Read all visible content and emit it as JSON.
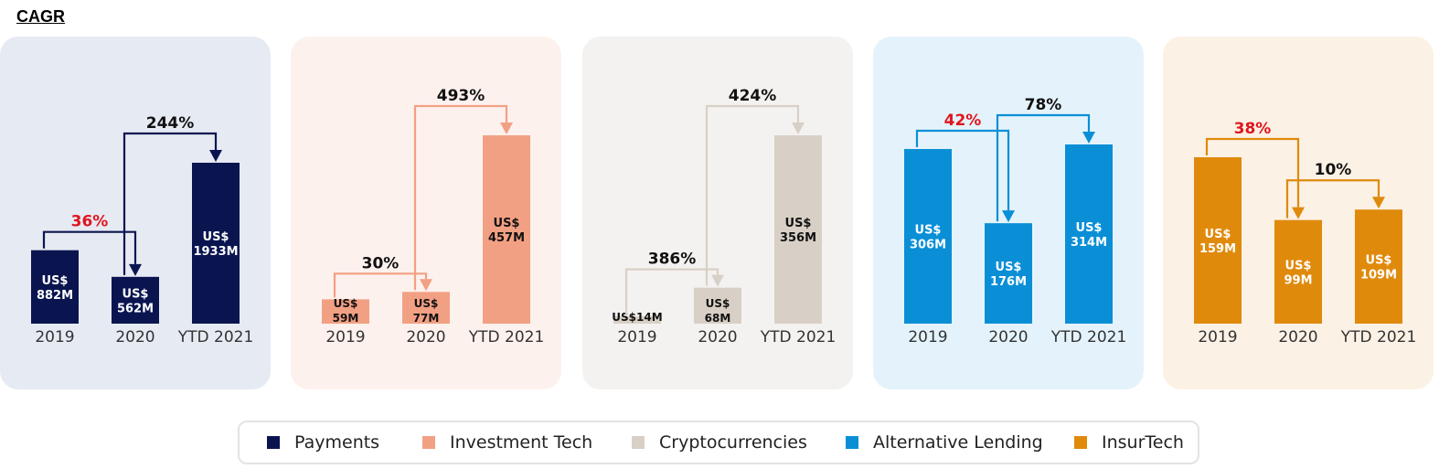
{
  "page": {
    "title": "CAGR"
  },
  "chart_data": [
    {
      "type": "bar",
      "name": "Payments",
      "color": "#0a1550",
      "panel_color": "#e6eaf2",
      "connector_color": "#0a1550",
      "categories": [
        "2019",
        "2020",
        "YTD 2021"
      ],
      "values": [
        882,
        562,
        1933
      ],
      "value_labels": [
        [
          "US$",
          "882M"
        ],
        [
          "US$",
          "562M"
        ],
        [
          "US$",
          "1933M"
        ]
      ],
      "label_color": "#ffffff",
      "growth": [
        {
          "from": 0,
          "to": 1,
          "label": "36%",
          "color": "#e0161e"
        },
        {
          "from": 1,
          "to": 2,
          "label": "244%",
          "color": "#111111"
        }
      ]
    },
    {
      "type": "bar",
      "name": "Investment Tech",
      "color": "#f2a083",
      "panel_color": "#fdf1ee",
      "connector_color": "#f2a083",
      "categories": [
        "2019",
        "2020",
        "YTD 2021"
      ],
      "values": [
        59,
        77,
        457
      ],
      "value_labels": [
        [
          "US$",
          "59M"
        ],
        [
          "US$",
          "77M"
        ],
        [
          "US$",
          "457M"
        ]
      ],
      "label_color": "#111111",
      "growth": [
        {
          "from": 0,
          "to": 1,
          "label": "30%",
          "color": "#111111"
        },
        {
          "from": 1,
          "to": 2,
          "label": "493%",
          "color": "#111111"
        }
      ]
    },
    {
      "type": "bar",
      "name": "Cryptocurrencies",
      "color": "#d8d0c6",
      "panel_color": "#f4f2f0",
      "connector_color": "#d8d0c6",
      "categories": [
        "2019",
        "2020",
        "YTD 2021"
      ],
      "values": [
        14,
        68,
        356
      ],
      "value_labels": [
        [
          "US$14M"
        ],
        [
          "US$",
          "68M"
        ],
        [
          "US$",
          "356M"
        ]
      ],
      "label_color": "#111111",
      "growth": [
        {
          "from": 0,
          "to": 1,
          "label": "386%",
          "color": "#111111"
        },
        {
          "from": 1,
          "to": 2,
          "label": "424%",
          "color": "#111111"
        }
      ]
    },
    {
      "type": "bar",
      "name": "Alternative Lending",
      "color": "#0a8fd6",
      "panel_color": "#e4f3fb",
      "connector_color": "#0a8fd6",
      "categories": [
        "2019",
        "2020",
        "YTD 2021"
      ],
      "values": [
        306,
        176,
        314
      ],
      "value_labels": [
        [
          "US$",
          "306M"
        ],
        [
          "US$",
          "176M"
        ],
        [
          "US$",
          "314M"
        ]
      ],
      "label_color": "#ffffff",
      "growth": [
        {
          "from": 0,
          "to": 1,
          "label": "42%",
          "color": "#e0161e"
        },
        {
          "from": 1,
          "to": 2,
          "label": "78%",
          "color": "#111111"
        }
      ]
    },
    {
      "type": "bar",
      "name": "InsurTech",
      "color": "#e08a0c",
      "panel_color": "#fcf1e5",
      "connector_color": "#e08a0c",
      "categories": [
        "2019",
        "2020",
        "YTD 2021"
      ],
      "values": [
        159,
        99,
        109
      ],
      "value_labels": [
        [
          "US$",
          "159M"
        ],
        [
          "US$",
          "99M"
        ],
        [
          "US$",
          "109M"
        ]
      ],
      "label_color": "#ffffff",
      "growth": [
        {
          "from": 0,
          "to": 1,
          "label": "38%",
          "color": "#e0161e"
        },
        {
          "from": 1,
          "to": 2,
          "label": "10%",
          "color": "#111111"
        }
      ]
    }
  ],
  "legend": {
    "items": [
      {
        "label": "Payments",
        "color": "#0a1550"
      },
      {
        "label": "Investment Tech",
        "color": "#f2a083"
      },
      {
        "label": "Cryptocurrencies",
        "color": "#d8d0c6"
      },
      {
        "label": "Alternative Lending",
        "color": "#0a8fd6"
      },
      {
        "label": "InsurTech",
        "color": "#e08a0c"
      }
    ]
  }
}
